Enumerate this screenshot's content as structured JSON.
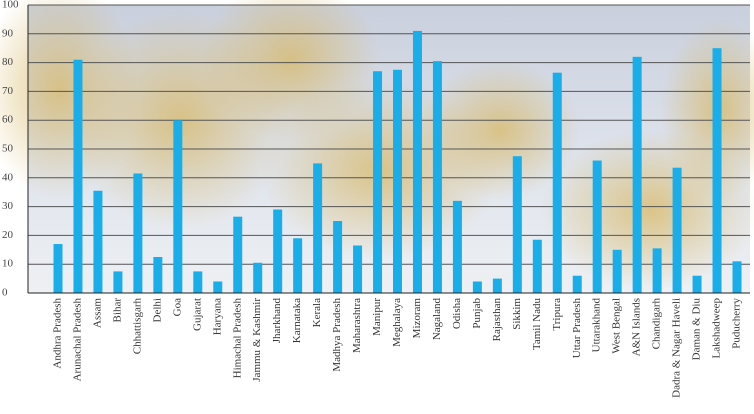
{
  "chart_data": {
    "type": "bar",
    "categories": [
      "Andhra Pradesh",
      "Arunachal Pradesh",
      "Assam",
      "Bihar",
      "Chhattisgarh",
      "Delhi",
      "Goa",
      "Gujarat",
      "Haryana",
      "Himachal Pradesh",
      "Jammu & Kashmir",
      "Jharkhand",
      "Karnataka",
      "Kerala",
      "Madhya Pradesh",
      "Maharashtra",
      "Manipur",
      "Meghalaya",
      "Mizoram",
      "Nagaland",
      "Odisha",
      "Punjab",
      "Rajasthan",
      "Sikkim",
      "Tamil Nadu",
      "Tripura",
      "Uttar Pradesh",
      "Uttarakhand",
      "West Bengal",
      "A&N Islands",
      "Chandigarh",
      "Dadra & Nagar Haveli",
      "Daman & Diu",
      "Lakshadweep",
      "Puducherry"
    ],
    "values": [
      17,
      81,
      35.5,
      7.5,
      41.5,
      12.5,
      60,
      7.5,
      4,
      26.5,
      10.5,
      29,
      19,
      45,
      25,
      16.5,
      77,
      77.5,
      91,
      80.5,
      32,
      4,
      5,
      47.5,
      18.5,
      76.5,
      6,
      46,
      15,
      82,
      15.5,
      43.5,
      6,
      85,
      11
    ],
    "color": "#19aeea",
    "ylim": [
      0,
      100
    ],
    "yticks": [
      0,
      10,
      20,
      30,
      40,
      50,
      60,
      70,
      80,
      90,
      100
    ],
    "grid": true
  }
}
